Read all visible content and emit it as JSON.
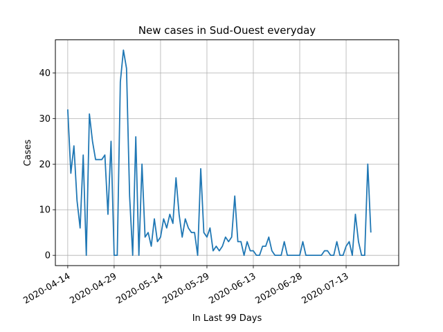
{
  "chart_data": {
    "type": "line",
    "title": "New cases in Sud-Ouest everyday",
    "xlabel": "In Last 99 Days",
    "ylabel": "Cases",
    "x_start": "2020-04-14",
    "x_tick_labels": [
      "2020-04-14",
      "2020-04-29",
      "2020-05-14",
      "2020-05-29",
      "2020-06-13",
      "2020-06-28",
      "2020-07-13"
    ],
    "y_ticks": [
      0,
      10,
      20,
      30,
      40
    ],
    "xlim": [
      "2020-04-10",
      "2020-07-30"
    ],
    "ylim": [
      -2.25,
      47.25
    ],
    "grid": true,
    "line_color": "#1f77b4",
    "series": [
      {
        "values": [
          32,
          18,
          24,
          12,
          6,
          22,
          0,
          31,
          25,
          21,
          21,
          21,
          22,
          9,
          25,
          0,
          0,
          38,
          45,
          41,
          13,
          0,
          26,
          0,
          20,
          4,
          5,
          2,
          8,
          3,
          4,
          8,
          6,
          9,
          7,
          17,
          9,
          4,
          8,
          6,
          5,
          5,
          0,
          19,
          5,
          4,
          6,
          1,
          2,
          1,
          2,
          4,
          3,
          4,
          13,
          3,
          3,
          0,
          3,
          1,
          1,
          0,
          0,
          2,
          2,
          4,
          1,
          0,
          0,
          0,
          3,
          0,
          0,
          0,
          0,
          0,
          3,
          0,
          0,
          0,
          0,
          0,
          0,
          1,
          1,
          0,
          0,
          3,
          0,
          0,
          2,
          3,
          0,
          9,
          3,
          0,
          0,
          20,
          5
        ]
      }
    ]
  }
}
